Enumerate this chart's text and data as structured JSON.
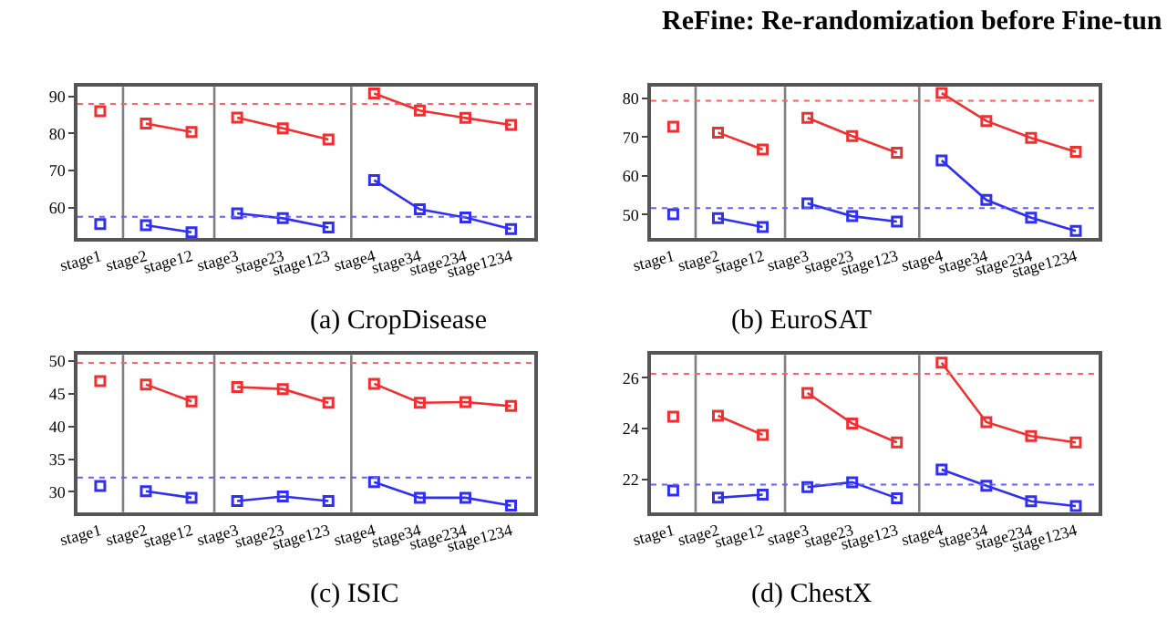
{
  "chart_data": [
    {
      "type": "line",
      "xlabel": "(a) CropDisease",
      "annotations": [
        "ReFine: Re-randomization before Fine-tun"
      ],
      "marker": "square",
      "categories": [
        "stage1",
        "stage2",
        "stage12",
        "stage3",
        "stage23",
        "stage123",
        "stage4",
        "stage34",
        "stage234",
        "stage1234"
      ],
      "ylim": [
        51.8,
        92.6
      ],
      "yticks": [
        60,
        70,
        80,
        90
      ],
      "ref_lines": [
        {
          "axis": "y",
          "value": 88,
          "color": "#ff6060",
          "line_style": "dotted"
        },
        {
          "axis": "y",
          "value": 57.5,
          "color": "#6060ff",
          "line_style": "dotted"
        }
      ],
      "series": [
        {
          "color": "#f03030",
          "values": [
            86,
            null,
            null,
            null,
            null,
            null,
            null,
            null,
            null,
            null
          ]
        },
        {
          "color": "#f03030",
          "values": [
            null,
            82.7,
            80.4,
            null,
            null,
            null,
            null,
            null,
            null,
            null
          ]
        },
        {
          "color": "#f03030",
          "values": [
            null,
            null,
            null,
            84.3,
            81.4,
            78.4,
            null,
            null,
            null,
            null
          ]
        },
        {
          "color": "#f03030",
          "values": [
            null,
            null,
            null,
            null,
            null,
            null,
            90.8,
            86.2,
            84.2,
            82.3
          ]
        },
        {
          "color": "#3030f0",
          "values": [
            55.5,
            null,
            null,
            null,
            null,
            null,
            null,
            null,
            null,
            null
          ]
        },
        {
          "color": "#3030f0",
          "values": [
            null,
            55.2,
            53.3,
            null,
            null,
            null,
            null,
            null,
            null,
            null
          ]
        },
        {
          "color": "#3030f0",
          "values": [
            null,
            null,
            null,
            58.4,
            57.1,
            54.6,
            null,
            null,
            null,
            null
          ]
        },
        {
          "color": "#3030f0",
          "values": [
            null,
            null,
            null,
            null,
            null,
            null,
            67.4,
            59.5,
            57.3,
            54.2
          ]
        }
      ]
    },
    {
      "type": "line",
      "xlabel": "(b) EuroSAT",
      "marker": "square",
      "categories": [
        "stage1",
        "stage2",
        "stage12",
        "stage3",
        "stage23",
        "stage123",
        "stage4",
        "stage34",
        "stage234",
        "stage1234"
      ],
      "ylim": [
        44,
        83
      ],
      "yticks": [
        50,
        60,
        70,
        80
      ],
      "ref_lines": [
        {
          "axis": "y",
          "value": 79.4,
          "color": "#ff6060",
          "line_style": "dotted"
        },
        {
          "axis": "y",
          "value": 51.7,
          "color": "#6060ff",
          "line_style": "dotted"
        }
      ],
      "series": [
        {
          "color": "#f03030",
          "values": [
            72.7,
            null,
            null,
            null,
            null,
            null,
            null,
            null,
            null,
            null
          ]
        },
        {
          "color": "#f03030",
          "values": [
            null,
            71.2,
            66.8,
            null,
            null,
            null,
            null,
            null,
            null,
            null
          ]
        },
        {
          "color": "#f03030",
          "values": [
            null,
            null,
            null,
            75,
            70.3,
            66,
            null,
            null,
            null,
            null
          ]
        },
        {
          "color": "#f03030",
          "values": [
            null,
            null,
            null,
            null,
            null,
            null,
            81.4,
            74.2,
            69.8,
            66.2
          ]
        },
        {
          "color": "#3030f0",
          "values": [
            50.1,
            null,
            null,
            null,
            null,
            null,
            null,
            null,
            null,
            null
          ]
        },
        {
          "color": "#3030f0",
          "values": [
            null,
            49.1,
            46.8,
            null,
            null,
            null,
            null,
            null,
            null,
            null
          ]
        },
        {
          "color": "#3030f0",
          "values": [
            null,
            null,
            null,
            52.9,
            49.6,
            48.2,
            null,
            null,
            null,
            null
          ]
        },
        {
          "color": "#3030f0",
          "values": [
            null,
            null,
            null,
            null,
            null,
            null,
            64,
            53.8,
            49.2,
            45.8
          ]
        }
      ]
    },
    {
      "type": "line",
      "xlabel": "(c) ISIC",
      "marker": "square",
      "categories": [
        "stage1",
        "stage2",
        "stage12",
        "stage3",
        "stage23",
        "stage123",
        "stage4",
        "stage34",
        "stage234",
        "stage1234"
      ],
      "ylim": [
        26.9,
        50.9
      ],
      "yticks": [
        30,
        35,
        40,
        45,
        50
      ],
      "ref_lines": [
        {
          "axis": "y",
          "value": 49.7,
          "color": "#ff6060",
          "line_style": "dotted"
        },
        {
          "axis": "y",
          "value": 32.2,
          "color": "#6060ff",
          "line_style": "dotted"
        }
      ],
      "series": [
        {
          "color": "#f03030",
          "values": [
            46.9,
            null,
            null,
            null,
            null,
            null,
            null,
            null,
            null,
            null
          ]
        },
        {
          "color": "#f03030",
          "values": [
            null,
            46.4,
            43.8,
            null,
            null,
            null,
            null,
            null,
            null,
            null
          ]
        },
        {
          "color": "#f03030",
          "values": [
            null,
            null,
            null,
            46,
            45.7,
            43.6,
            null,
            null,
            null,
            null
          ]
        },
        {
          "color": "#f03030",
          "values": [
            null,
            null,
            null,
            null,
            null,
            null,
            46.5,
            43.6,
            43.7,
            43.1
          ]
        },
        {
          "color": "#3030f0",
          "values": [
            30.9,
            null,
            null,
            null,
            null,
            null,
            null,
            null,
            null,
            null
          ]
        },
        {
          "color": "#3030f0",
          "values": [
            null,
            30.1,
            29.1,
            null,
            null,
            null,
            null,
            null,
            null,
            null
          ]
        },
        {
          "color": "#3030f0",
          "values": [
            null,
            null,
            null,
            28.6,
            29.3,
            28.6,
            null,
            null,
            null,
            null
          ]
        },
        {
          "color": "#3030f0",
          "values": [
            null,
            null,
            null,
            null,
            null,
            null,
            31.5,
            29.1,
            29.1,
            27.9
          ]
        }
      ]
    },
    {
      "type": "line",
      "xlabel": "(d) ChestX",
      "marker": "square",
      "categories": [
        "stage1",
        "stage2",
        "stage12",
        "stage3",
        "stage23",
        "stage123",
        "stage4",
        "stage34",
        "stage234",
        "stage1234"
      ],
      "ylim": [
        20.7,
        26.9
      ],
      "yticks": [
        22,
        24,
        26
      ],
      "ref_lines": [
        {
          "axis": "y",
          "value": 26.16,
          "color": "#ff6060",
          "line_style": "dotted"
        },
        {
          "axis": "y",
          "value": 21.79,
          "color": "#6060ff",
          "line_style": "dotted"
        }
      ],
      "series": [
        {
          "color": "#f03030",
          "values": [
            24.47,
            null,
            null,
            null,
            null,
            null,
            null,
            null,
            null,
            null
          ]
        },
        {
          "color": "#f03030",
          "values": [
            null,
            24.5,
            23.75,
            null,
            null,
            null,
            null,
            null,
            null,
            null
          ]
        },
        {
          "color": "#f03030",
          "values": [
            null,
            null,
            null,
            25.4,
            24.2,
            23.45,
            null,
            null,
            null,
            null
          ]
        },
        {
          "color": "#f03030",
          "values": [
            null,
            null,
            null,
            null,
            null,
            null,
            26.6,
            24.25,
            23.7,
            23.45
          ]
        },
        {
          "color": "#3030f0",
          "values": [
            21.55,
            null,
            null,
            null,
            null,
            null,
            null,
            null,
            null,
            null
          ]
        },
        {
          "color": "#3030f0",
          "values": [
            null,
            21.27,
            21.39,
            null,
            null,
            null,
            null,
            null,
            null,
            null
          ]
        },
        {
          "color": "#3030f0",
          "values": [
            null,
            null,
            null,
            21.69,
            21.88,
            21.25,
            null,
            null,
            null,
            null
          ]
        },
        {
          "color": "#3030f0",
          "values": [
            null,
            null,
            null,
            null,
            null,
            null,
            22.38,
            21.74,
            21.13,
            20.94
          ]
        }
      ]
    }
  ]
}
